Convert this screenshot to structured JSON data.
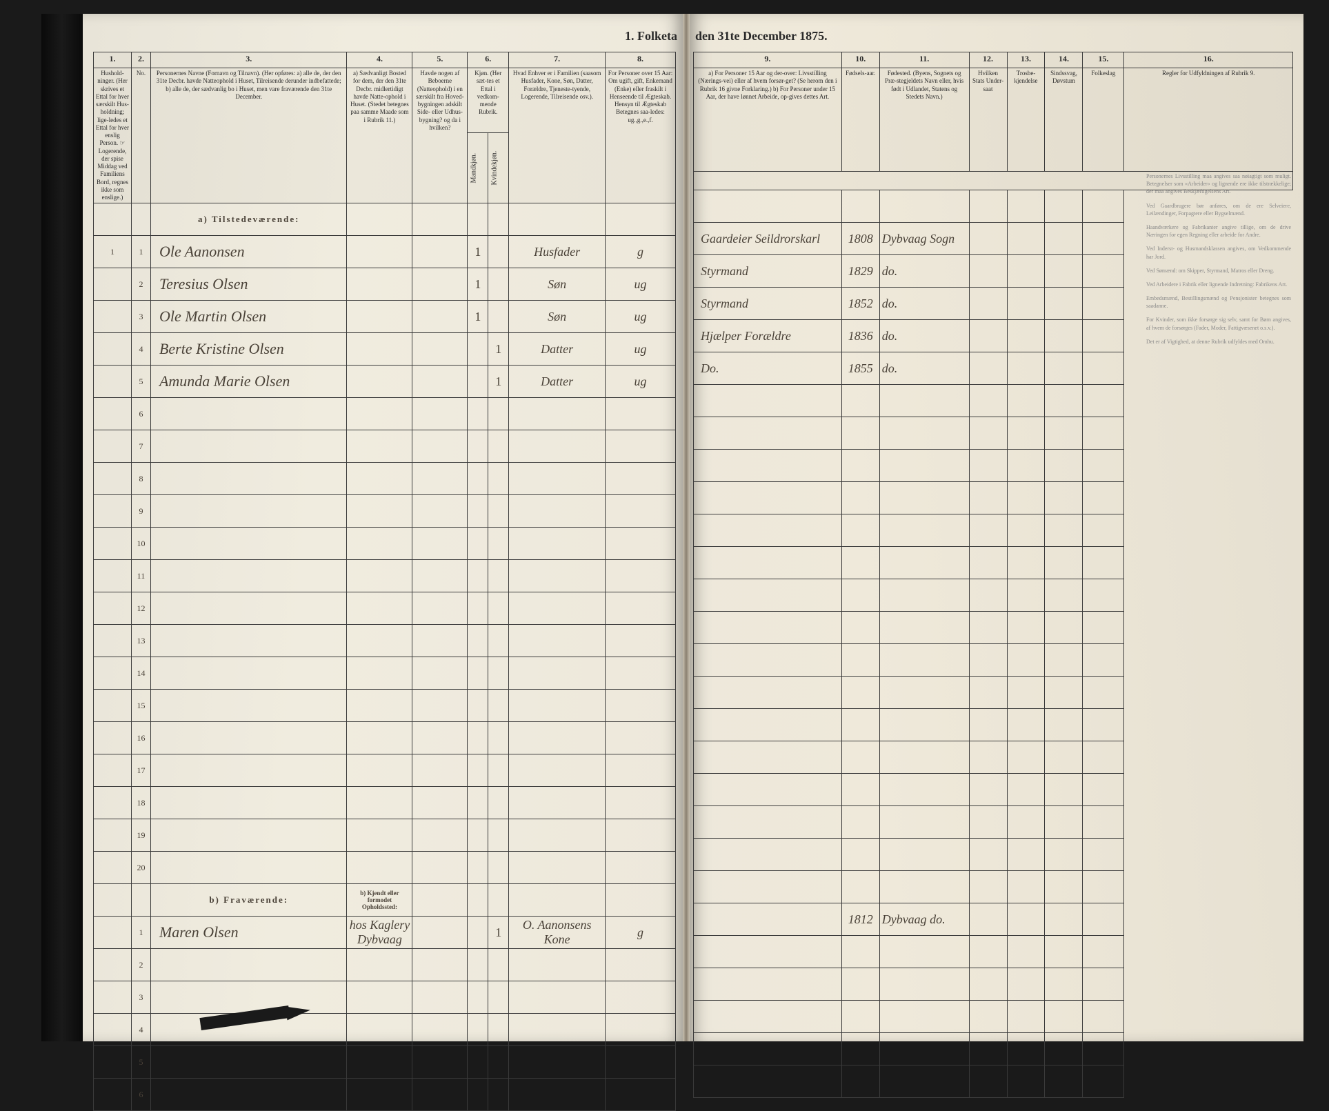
{
  "title_left": "1. Folketa",
  "title_right": "den 31te December 1875.",
  "columns_left": {
    "c1": "1.",
    "c2": "2.",
    "c3": "3.",
    "c4": "4.",
    "c5": "5.",
    "c6": "6.",
    "c7": "7.",
    "c8": "8."
  },
  "columns_right": {
    "c9": "9.",
    "c10": "10.",
    "c11": "11.",
    "c12": "12.",
    "c13": "13.",
    "c14": "14.",
    "c15": "15.",
    "c16": "16."
  },
  "headers_left": {
    "h1": "Hushold-ninger.\n(Her skrives et Ettal for hver særskilt Hus-holdning; lige-ledes et Ettal for hver enslig Person.\n☞ Logerende, der spise Middag ved Familiens Bord, regnes ikke som enslige.)",
    "h2": "No.",
    "h3": "Personernes Navne (Fornavn og Tilnavn).\n(Her opføres:\na) alle de, der den 31te Decbr. havde Natteophold i Huset, Tilreisende derunder indbefattede;\nb) alle de, der sædvanlig bo i Huset, men vare fraværende den 31te December.",
    "h4": "a) Sædvanligt Bosted for dem, der den 31te Decbr. midlertidigt havde Natte-ophold i Huset.\n(Stedet betegnes paa samme Maade som i Rubrik 11.)",
    "h5": "Havde nogen af Beboerne (Natteophold) i en særskilt fra Hoved-bygningen adskilt Side- eller Udhus-bygning? og da i hvilken?",
    "h6": "Kjøn.\n(Her sæt-tes et Ettal i vedkom-mende Rubrik.",
    "h6m": "Mandkjøn.",
    "h6f": "Kvindekjøn.",
    "h7": "Hvad Enhver er i Familien\n(saasom Husfader, Kone, Søn, Datter, Forældre, Tjeneste-tyende, Logerende, Tilreisende osv.).",
    "h8": "For Personer over 15 Aar: Om ugift, gift, Enkemand (Enke) eller fraskilt i Henseende til Ægteskab. Hensyn til Ægteskab Betegnes saa-ledes:\nug.,g.,e.,f."
  },
  "headers_right": {
    "h9": "a) For Personer 15 Aar og der-over: Livsstilling (Nærings-vei) eller af hvem forsør-get? (Se herom den i Rubrik 16 givne Forklaring.)\nb) For Personer under 15 Aar, der have lønnet Arbeide, op-gives dettes Art.",
    "h10": "Fødsels-aar.",
    "h11": "Fødested.\n(Byens, Sognets og Præ-stegjeldets Navn eller, hvis født i Udlandet, Statens og Stedets Navn.)",
    "h12": "Hvilken Stats Under-saat",
    "h13": "Trosbe-kjendelse",
    "h14": "Sindssvag, Døvstum",
    "h15": "Folkeslag",
    "h16": "Regler for Udfyldningen af Rubrik 9."
  },
  "section_a": "a) Tilstedeværende:",
  "section_b": "b) Fraværende:",
  "section_b4": "b) Kjendt eller formodet Opholdssted:",
  "rows_a": [
    {
      "n": "1",
      "hh": "1",
      "name": "Ole Aanonsen",
      "c4": "",
      "c5": "",
      "m": "1",
      "f": "",
      "role": "Husfader",
      "civ": "g",
      "occ": "Gaardeier Seildrorskarl",
      "year": "1808",
      "place": "Dybvaag Sogn"
    },
    {
      "n": "2",
      "hh": "",
      "name": "Teresius Olsen",
      "c4": "",
      "c5": "",
      "m": "1",
      "f": "",
      "role": "Søn",
      "civ": "ug",
      "occ": "Styrmand",
      "year": "1829",
      "place": "do."
    },
    {
      "n": "3",
      "hh": "",
      "name": "Ole Martin Olsen",
      "c4": "",
      "c5": "",
      "m": "1",
      "f": "",
      "role": "Søn",
      "civ": "ug",
      "occ": "Styrmand",
      "year": "1852",
      "place": "do."
    },
    {
      "n": "4",
      "hh": "",
      "name": "Berte Kristine Olsen",
      "c4": "",
      "c5": "",
      "m": "",
      "f": "1",
      "role": "Datter",
      "civ": "ug",
      "occ": "Hjælper Forældre",
      "year": "1836",
      "place": "do."
    },
    {
      "n": "5",
      "hh": "",
      "name": "Amunda Marie Olsen",
      "c4": "",
      "c5": "",
      "m": "",
      "f": "1",
      "role": "Datter",
      "civ": "ug",
      "occ": "Do.",
      "year": "1855",
      "place": "do."
    }
  ],
  "empty_a_start": 6,
  "empty_a_end": 20,
  "rows_b": [
    {
      "n": "1",
      "name": "Maren Olsen",
      "c4": "hos Kaglery Dybvaag",
      "c5": "",
      "m": "",
      "f": "1",
      "role": "O. Aanonsens Kone",
      "civ": "g",
      "occ": "",
      "year": "1812",
      "place": "Dybvaag do."
    },
    {
      "n": "2",
      "name": "",
      "c4": "",
      "c5": "",
      "m": "",
      "f": "",
      "role": "",
      "civ": "",
      "occ": "",
      "year": "",
      "place": ""
    }
  ],
  "empty_b_start": 3,
  "empty_b_end": 6,
  "side_paragraphs": [
    "Personernes Livsstilling maa angives saa nøiagtigt som muligt. Betegnelser som «Arbeider» og lignende ere ikke tilstrækkelige; der maa angives Beskjæftigelsens Art.",
    "Ved Gaardbrugere bør anføres, om de ere Selveiere, Leilændinger, Forpagtere eller Bygselmænd.",
    "Haandværkere og Fabrikanter angive tillige, om de drive Næringen for egen Regning eller arbeide for Andre.",
    "Ved Inderst‑ og Husmandsklassen angives, om Vedkommende har Jord.",
    "Ved Sømænd: om Skipper, Styrmand, Matros eller Dreng.",
    "Ved Arbeidere i Fabrik eller lignende Indretning: Fabrikens Art.",
    "Embedsmænd, Bestillingsmænd og Pensjonister betegnes som saadanne.",
    "For Kvinder, som ikke forsørge sig selv, samt for Børn angives, af hvem de forsørges (Fader, Moder, Fattigvæsenet o.s.v.).",
    "Det er af Vigtighed, at denne Rubrik udfyldes med Omhu."
  ],
  "colors": {
    "paper": "#ede8db",
    "ink": "#2a2a2a",
    "handwriting": "#4a4238",
    "border": "#3a3a3a"
  }
}
